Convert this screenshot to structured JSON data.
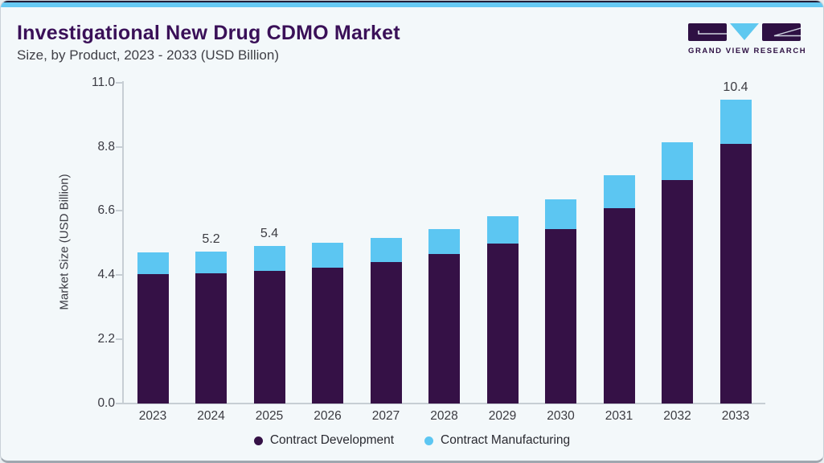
{
  "header": {
    "title": "Investigational New Drug CDMO Market",
    "subtitle": "Size, by Product, 2023 - 2033 (USD Billion)"
  },
  "logo": {
    "text": "GRAND VIEW RESEARCH"
  },
  "colors": {
    "title": "#3a1058",
    "accent_top_bar": "#66c9f2",
    "contract_development": "#351146",
    "contract_manufacturing": "#5cc6f2",
    "background": "#f3f8fa"
  },
  "chart_data": {
    "type": "bar",
    "stacked": true,
    "title": "Investigational New Drug CDMO Market Size, by Product, 2023 - 2033 (USD Billion)",
    "categories": [
      "2023",
      "2024",
      "2025",
      "2026",
      "2027",
      "2028",
      "2029",
      "2030",
      "2031",
      "2032",
      "2033"
    ],
    "series": [
      {
        "name": "Contract Development",
        "color": "#351146",
        "values": [
          4.44,
          4.45,
          4.55,
          4.66,
          4.86,
          5.12,
          5.49,
          5.99,
          6.7,
          7.65,
          8.9
        ]
      },
      {
        "name": "Contract Manufacturing",
        "color": "#5cc6f2",
        "values": [
          0.75,
          0.75,
          0.85,
          0.84,
          0.82,
          0.85,
          0.93,
          1.01,
          1.12,
          1.29,
          1.5
        ]
      }
    ],
    "totals": [
      5.19,
      5.2,
      5.4,
      5.5,
      5.68,
      5.97,
      6.42,
      7.0,
      7.82,
      8.94,
      10.4
    ],
    "value_labels": {
      "2024": "5.2",
      "2025": "5.4",
      "2033": "10.4"
    },
    "ylabel": "Market Size (USD Billion)",
    "ylim": [
      0,
      11
    ],
    "yticks": [
      "0.0",
      "2.2",
      "4.4",
      "6.6",
      "8.8",
      "11.0"
    ],
    "grid": false,
    "legend_position": "bottom"
  }
}
